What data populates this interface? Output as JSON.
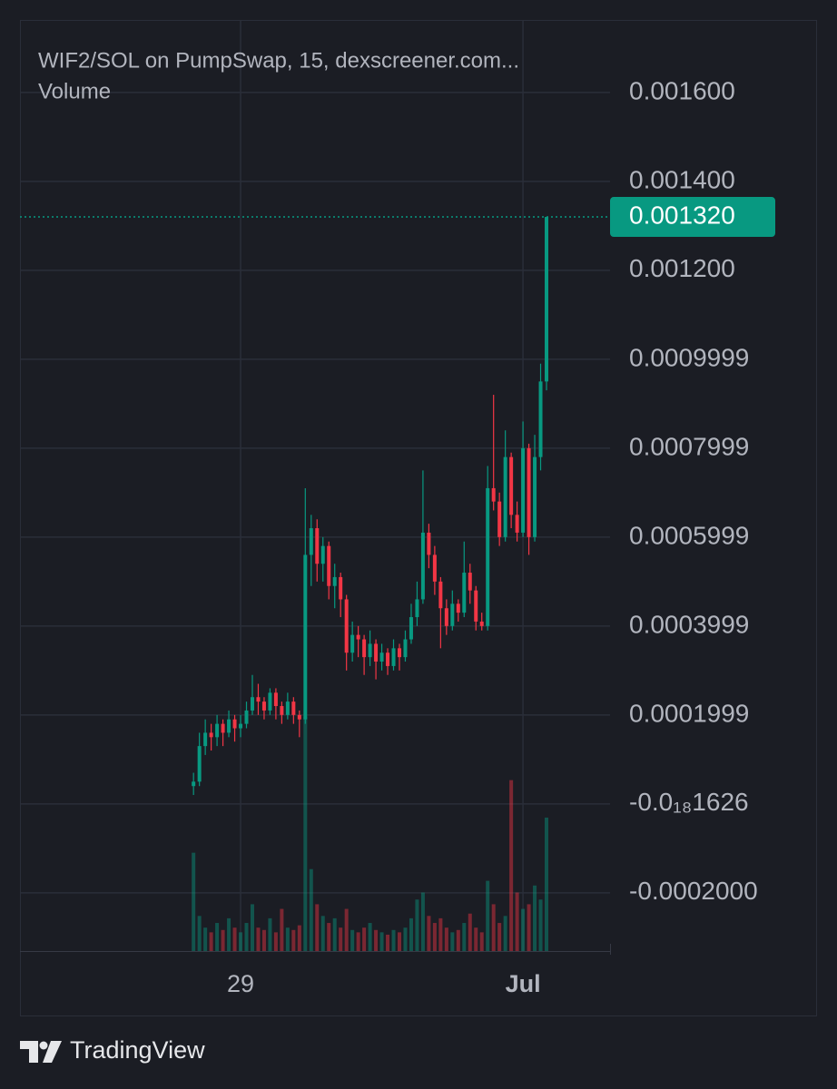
{
  "chart_data": {
    "type": "candlestick",
    "title": "WIF2/SOL on PumpSwap, 15, dexscreener.com...",
    "subtitle": "Volume",
    "footer": "TradingView",
    "up_color": "#089981",
    "down_color": "#f23645",
    "grid": true,
    "ylim": [
      -0.000331,
      0.001763
    ],
    "yticks": [
      {
        "value": 0.0016,
        "label": "0.001600"
      },
      {
        "value": 0.0014,
        "label": "0.001400"
      },
      {
        "value": 0.0012,
        "label": "0.001200"
      },
      {
        "value": 0.0009999,
        "label": "0.0009999"
      },
      {
        "value": 0.0007999,
        "label": "0.0007999"
      },
      {
        "value": 0.0005999,
        "label": "0.0005999"
      },
      {
        "value": 0.0003999,
        "label": "0.0003999"
      },
      {
        "value": 0.0001999,
        "label": "0.0001999"
      },
      {
        "value": -1.626e-19,
        "label": "-0.0₁₈1626"
      },
      {
        "value": -0.0002,
        "label": "-0.0002000"
      }
    ],
    "xlim": [
      -37.5,
      62.8
    ],
    "xticks": [
      {
        "value": 0,
        "label": "29"
      },
      {
        "value": 48,
        "label": "Jul"
      }
    ],
    "last_price": {
      "value": 0.00132,
      "label": "0.001320"
    },
    "vlim": [
      0,
      100
    ],
    "x": [
      -8,
      -7,
      -6,
      -5,
      -4,
      -3,
      -2,
      -1,
      0,
      1,
      2,
      3,
      4,
      5,
      6,
      7,
      8,
      9,
      10,
      11,
      12,
      13,
      14,
      15,
      16,
      17,
      18,
      19,
      20,
      21,
      22,
      23,
      24,
      25,
      26,
      27,
      28,
      29,
      30,
      31,
      32,
      33,
      34,
      35,
      36,
      37,
      38,
      39,
      40,
      41,
      42,
      43,
      44,
      45,
      46,
      47,
      48,
      49,
      50,
      51,
      52
    ],
    "ohlc": [
      [
        4e-05,
        7e-05,
        2e-05,
        5e-05
      ],
      [
        5e-05,
        0.00016,
        4e-05,
        0.00013
      ],
      [
        0.00013,
        0.00019,
        0.00011,
        0.00016
      ],
      [
        0.00016,
        0.00018,
        0.00012,
        0.00015
      ],
      [
        0.00015,
        0.0002,
        0.00013,
        0.00018
      ],
      [
        0.00018,
        0.00019,
        0.00013,
        0.00016
      ],
      [
        0.00016,
        0.00021,
        0.00015,
        0.00019
      ],
      [
        0.00019,
        0.0002,
        0.00014,
        0.00017
      ],
      [
        0.00017,
        0.0002,
        0.00015,
        0.00018
      ],
      [
        0.00018,
        0.00023,
        0.00017,
        0.00021
      ],
      [
        0.00021,
        0.00029,
        0.0002,
        0.00024
      ],
      [
        0.00024,
        0.00027,
        0.0002,
        0.00023
      ],
      [
        0.00023,
        0.00024,
        0.00019,
        0.00021
      ],
      [
        0.00021,
        0.00026,
        0.0002,
        0.00025
      ],
      [
        0.00025,
        0.00026,
        0.00019,
        0.00022
      ],
      [
        0.00022,
        0.00023,
        0.00018,
        0.0002
      ],
      [
        0.0002,
        0.00025,
        0.00019,
        0.00023
      ],
      [
        0.00023,
        0.00024,
        0.00018,
        0.0002
      ],
      [
        0.0002,
        0.00021,
        0.00015,
        0.00019
      ],
      [
        0.00019,
        0.00071,
        0.00018,
        0.00056
      ],
      [
        0.00056,
        0.00065,
        0.00049,
        0.00062
      ],
      [
        0.00062,
        0.00064,
        0.0005,
        0.00054
      ],
      [
        0.00054,
        0.0006,
        0.0005,
        0.00058
      ],
      [
        0.00058,
        0.00059,
        0.00046,
        0.00049
      ],
      [
        0.00049,
        0.00054,
        0.00044,
        0.00051
      ],
      [
        0.00051,
        0.00052,
        0.00042,
        0.00046
      ],
      [
        0.00046,
        0.00047,
        0.0003,
        0.00034
      ],
      [
        0.00034,
        0.00041,
        0.00032,
        0.00038
      ],
      [
        0.00038,
        0.0004,
        0.00033,
        0.00037
      ],
      [
        0.00037,
        0.00038,
        0.00029,
        0.00033
      ],
      [
        0.00033,
        0.00039,
        0.00031,
        0.00036
      ],
      [
        0.00036,
        0.00037,
        0.00028,
        0.00032
      ],
      [
        0.00032,
        0.00036,
        0.0003,
        0.00034
      ],
      [
        0.00034,
        0.00035,
        0.00029,
        0.00031
      ],
      [
        0.00031,
        0.00037,
        0.0003,
        0.00035
      ],
      [
        0.00035,
        0.00036,
        0.0003,
        0.00033
      ],
      [
        0.00033,
        0.00039,
        0.00032,
        0.00037
      ],
      [
        0.00037,
        0.00045,
        0.00036,
        0.00042
      ],
      [
        0.00042,
        0.0005,
        0.0004,
        0.00046
      ],
      [
        0.00046,
        0.00075,
        0.00045,
        0.00061
      ],
      [
        0.00061,
        0.00063,
        0.00053,
        0.00056
      ],
      [
        0.00056,
        0.00058,
        0.00047,
        0.0005
      ],
      [
        0.0005,
        0.00051,
        0.00035,
        0.00044
      ],
      [
        0.00044,
        0.00046,
        0.00038,
        0.0004
      ],
      [
        0.0004,
        0.00048,
        0.00039,
        0.00045
      ],
      [
        0.00045,
        0.00046,
        0.00041,
        0.00043
      ],
      [
        0.00043,
        0.00059,
        0.00042,
        0.00052
      ],
      [
        0.00052,
        0.00054,
        0.00045,
        0.00048
      ],
      [
        0.00048,
        0.00049,
        0.00039,
        0.00041
      ],
      [
        0.00041,
        0.00043,
        0.00039,
        0.0004
      ],
      [
        0.0004,
        0.00076,
        0.00039,
        0.00071
      ],
      [
        0.00071,
        0.00092,
        0.00066,
        0.00068
      ],
      [
        0.00068,
        0.0007,
        0.00058,
        0.0006
      ],
      [
        0.0006,
        0.00084,
        0.00059,
        0.00078
      ],
      [
        0.00078,
        0.00079,
        0.00062,
        0.00065
      ],
      [
        0.00065,
        0.00068,
        0.00059,
        0.00061
      ],
      [
        0.00061,
        0.00086,
        0.0006,
        0.0008
      ],
      [
        0.0008,
        0.00081,
        0.00056,
        0.0006
      ],
      [
        0.0006,
        0.00083,
        0.00059,
        0.00078
      ],
      [
        0.00078,
        0.00099,
        0.00075,
        0.00095
      ],
      [
        0.00095,
        0.00132,
        0.00093,
        0.00132
      ]
    ],
    "volume": [
      42,
      15,
      10,
      8,
      12,
      9,
      14,
      10,
      8,
      12,
      20,
      10,
      9,
      14,
      8,
      18,
      10,
      9,
      11,
      100,
      35,
      20,
      15,
      12,
      14,
      10,
      18,
      9,
      8,
      10,
      12,
      9,
      8,
      7,
      9,
      8,
      10,
      14,
      22,
      25,
      15,
      12,
      14,
      10,
      8,
      9,
      12,
      16,
      10,
      8,
      30,
      20,
      12,
      15,
      73,
      25,
      18,
      20,
      28,
      22,
      57
    ]
  }
}
